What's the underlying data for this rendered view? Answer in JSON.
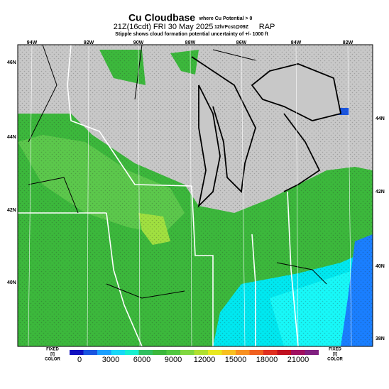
{
  "header": {
    "title": "Cu Cloudbase",
    "qualifier": "where Cu Potential > 0",
    "valid_time": "21Z(16cdt) FRI 30 May 2025",
    "forecast": "12hrFcst@09Z",
    "model": "RAP",
    "note": "Stipple shows cloud formation potential uncertainty of +/- 1000 ft"
  },
  "map": {
    "longitude_labels": [
      "94W",
      "92W",
      "90W",
      "88W",
      "86W",
      "84W",
      "82W"
    ],
    "left_latitude_labels": [
      "46N",
      "44N",
      "42N",
      "40N"
    ],
    "right_latitude_labels": [
      "44N",
      "42N",
      "40N",
      "38N"
    ]
  },
  "colorbar": {
    "ticks": [
      0,
      3000,
      6000,
      9000,
      12000,
      15000,
      18000,
      21000
    ],
    "left_label": [
      "FIXED",
      "[I]",
      "COLOR"
    ],
    "right_label": [
      "FIXED",
      "[I]",
      "COLOR"
    ]
  }
}
